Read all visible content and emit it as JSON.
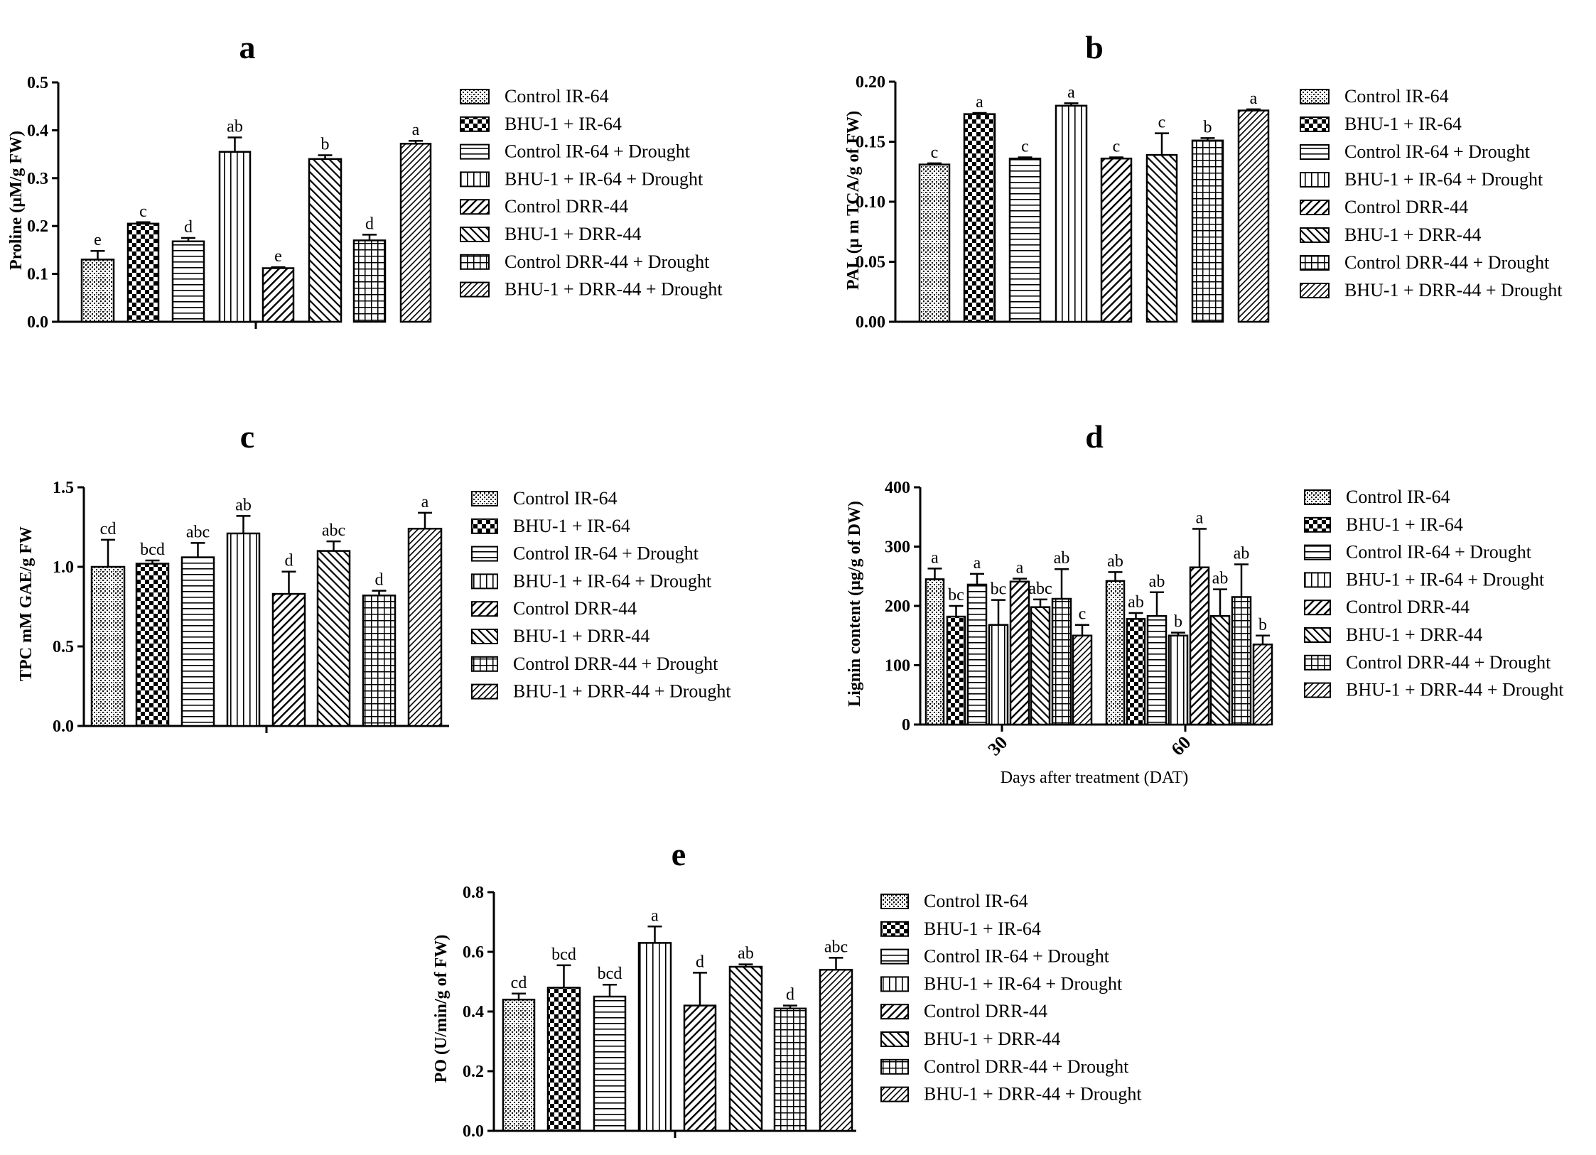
{
  "legend_entries": [
    "Control IR-64",
    "BHU-1 + IR-64",
    "Control IR-64 + Drought",
    "BHU-1 + IR-64 + Drought",
    "Control DRR-44",
    "BHU-1 + DRR-44",
    "Control DRR-44 + Drought",
    "BHU-1 + DRR-44 + Drought"
  ],
  "patterns": [
    "stipple",
    "checker",
    "hlines",
    "vlines",
    "diag-up",
    "diag-down",
    "grid",
    "diag-fine"
  ],
  "colors": {
    "ink": "#000000",
    "background": "#ffffff"
  },
  "chart_data": [
    {
      "panel": "a",
      "type": "bar",
      "title": "a",
      "ylabel": "Proline (µM/g FW)",
      "ylim": [
        0,
        0.5
      ],
      "yticks": [
        0.0,
        0.1,
        0.2,
        0.3,
        0.4,
        0.5
      ],
      "ytick_labels": [
        "0.0",
        "0.1",
        "0.2",
        "0.3",
        "0.4",
        "0.5"
      ],
      "series": [
        {
          "name": "Control IR-64",
          "values": [
            0.13
          ],
          "errors": [
            0.018
          ],
          "letters": [
            "e"
          ]
        },
        {
          "name": "BHU-1 + IR-64",
          "values": [
            0.205
          ],
          "errors": [
            0.003
          ],
          "letters": [
            "c"
          ]
        },
        {
          "name": "Control IR-64 + Drought",
          "values": [
            0.168
          ],
          "errors": [
            0.007
          ],
          "letters": [
            "d"
          ]
        },
        {
          "name": "BHU-1 + IR-64 + Drought",
          "values": [
            0.355
          ],
          "errors": [
            0.03
          ],
          "letters": [
            "ab"
          ]
        },
        {
          "name": "Control DRR-44",
          "values": [
            0.112
          ],
          "errors": [
            0.002
          ],
          "letters": [
            "e"
          ]
        },
        {
          "name": "BHU-1 + DRR-44",
          "values": [
            0.34
          ],
          "errors": [
            0.008
          ],
          "letters": [
            "b"
          ]
        },
        {
          "name": "Control DRR-44 + Drought",
          "values": [
            0.17
          ],
          "errors": [
            0.012
          ],
          "letters": [
            "d"
          ]
        },
        {
          "name": "BHU-1 + DRR-44 + Drought",
          "values": [
            0.372
          ],
          "errors": [
            0.006
          ],
          "letters": [
            "a"
          ]
        }
      ]
    },
    {
      "panel": "b",
      "type": "bar",
      "title": "b",
      "ylabel": "PAL (µ m TCA/g of FW)",
      "ylim": [
        0,
        0.2
      ],
      "yticks": [
        0.0,
        0.05,
        0.1,
        0.15,
        0.2
      ],
      "ytick_labels": [
        "0.00",
        "0.05",
        "0.10",
        "0.15",
        "0.20"
      ],
      "series": [
        {
          "name": "Control IR-64",
          "values": [
            0.131
          ],
          "errors": [
            0.001
          ],
          "letters": [
            "c"
          ]
        },
        {
          "name": "BHU-1 + IR-64",
          "values": [
            0.173
          ],
          "errors": [
            0.001
          ],
          "letters": [
            "a"
          ]
        },
        {
          "name": "Control IR-64 + Drought",
          "values": [
            0.136
          ],
          "errors": [
            0.001
          ],
          "letters": [
            "c"
          ]
        },
        {
          "name": "BHU-1 + IR-64 + Drought",
          "values": [
            0.18
          ],
          "errors": [
            0.002
          ],
          "letters": [
            "a"
          ]
        },
        {
          "name": "Control DRR-44",
          "values": [
            0.136
          ],
          "errors": [
            0.001
          ],
          "letters": [
            "c"
          ]
        },
        {
          "name": "BHU-1 + DRR-44",
          "values": [
            0.139
          ],
          "errors": [
            0.018
          ],
          "letters": [
            "c"
          ]
        },
        {
          "name": "Control DRR-44 + Drought",
          "values": [
            0.151
          ],
          "errors": [
            0.002
          ],
          "letters": [
            "b"
          ]
        },
        {
          "name": "BHU-1 + DRR-44 + Drought",
          "values": [
            0.176
          ],
          "errors": [
            0.001
          ],
          "letters": [
            "a"
          ]
        }
      ]
    },
    {
      "panel": "c",
      "type": "bar",
      "title": "c",
      "ylabel": "TPC mM GAE/g FW",
      "ylim": [
        0,
        1.5
      ],
      "yticks": [
        0.0,
        0.5,
        1.0,
        1.5
      ],
      "ytick_labels": [
        "0.0",
        "0.5",
        "1.0",
        "1.5"
      ],
      "series": [
        {
          "name": "Control IR-64",
          "values": [
            1.0
          ],
          "errors": [
            0.17
          ],
          "letters": [
            "cd"
          ]
        },
        {
          "name": "BHU-1 + IR-64",
          "values": [
            1.02
          ],
          "errors": [
            0.02
          ],
          "letters": [
            "bcd"
          ]
        },
        {
          "name": "Control IR-64 + Drought",
          "values": [
            1.06
          ],
          "errors": [
            0.09
          ],
          "letters": [
            "abc"
          ]
        },
        {
          "name": "BHU-1 + IR-64 + Drought",
          "values": [
            1.21
          ],
          "errors": [
            0.11
          ],
          "letters": [
            "ab"
          ]
        },
        {
          "name": "Control DRR-44",
          "values": [
            0.83
          ],
          "errors": [
            0.14
          ],
          "letters": [
            "d"
          ]
        },
        {
          "name": "BHU-1 + DRR-44",
          "values": [
            1.1
          ],
          "errors": [
            0.06
          ],
          "letters": [
            "abc"
          ]
        },
        {
          "name": "Control DRR-44 + Drought",
          "values": [
            0.82
          ],
          "errors": [
            0.03
          ],
          "letters": [
            "d"
          ]
        },
        {
          "name": "BHU-1 + DRR-44 + Drought",
          "values": [
            1.24
          ],
          "errors": [
            0.1
          ],
          "letters": [
            "a"
          ]
        }
      ]
    },
    {
      "panel": "d",
      "type": "bar",
      "title": "d",
      "ylabel": "Lignin content (µg/g of DW)",
      "xlabel": "Days after treatment (DAT)",
      "categories": [
        "30",
        "60"
      ],
      "ylim": [
        0,
        400
      ],
      "yticks": [
        0,
        100,
        200,
        300,
        400
      ],
      "ytick_labels": [
        "0",
        "100",
        "200",
        "300",
        "400"
      ],
      "series": [
        {
          "name": "Control IR-64",
          "values": [
            245,
            242
          ],
          "errors": [
            18,
            15
          ],
          "letters": [
            "a",
            "ab"
          ]
        },
        {
          "name": "BHU-1 + IR-64",
          "values": [
            182,
            178
          ],
          "errors": [
            18,
            10
          ],
          "letters": [
            "bc",
            "ab"
          ]
        },
        {
          "name": "Control IR-64 + Drought",
          "values": [
            236,
            183
          ],
          "errors": [
            18,
            40
          ],
          "letters": [
            "a",
            "ab"
          ]
        },
        {
          "name": "BHU-1 + IR-64 + Drought",
          "values": [
            168,
            150
          ],
          "errors": [
            42,
            5
          ],
          "letters": [
            "bc",
            "b"
          ]
        },
        {
          "name": "Control DRR-44",
          "values": [
            241,
            265
          ],
          "errors": [
            5,
            65
          ],
          "letters": [
            "a",
            "a"
          ]
        },
        {
          "name": "BHU-1 + DRR-44",
          "values": [
            198,
            183
          ],
          "errors": [
            13,
            45
          ],
          "letters": [
            "abc",
            "ab"
          ]
        },
        {
          "name": "Control DRR-44 + Drought",
          "values": [
            212,
            215
          ],
          "errors": [
            50,
            55
          ],
          "letters": [
            "ab",
            "ab"
          ]
        },
        {
          "name": "BHU-1 + DRR-44 + Drought",
          "values": [
            150,
            135
          ],
          "errors": [
            18,
            15
          ],
          "letters": [
            "c",
            "b"
          ]
        }
      ]
    },
    {
      "panel": "e",
      "type": "bar",
      "title": "e",
      "ylabel": "PO (U/min/g of FW)",
      "ylim": [
        0,
        0.8
      ],
      "yticks": [
        0.0,
        0.2,
        0.4,
        0.6,
        0.8
      ],
      "ytick_labels": [
        "0.0",
        "0.2",
        "0.4",
        "0.6",
        "0.8"
      ],
      "series": [
        {
          "name": "Control IR-64",
          "values": [
            0.44
          ],
          "errors": [
            0.02
          ],
          "letters": [
            "cd"
          ]
        },
        {
          "name": "BHU-1 + IR-64",
          "values": [
            0.48
          ],
          "errors": [
            0.075
          ],
          "letters": [
            "bcd"
          ]
        },
        {
          "name": "Control IR-64 + Drought",
          "values": [
            0.45
          ],
          "errors": [
            0.04
          ],
          "letters": [
            "bcd"
          ]
        },
        {
          "name": "BHU-1 + IR-64 + Drought",
          "values": [
            0.63
          ],
          "errors": [
            0.055
          ],
          "letters": [
            "a"
          ]
        },
        {
          "name": "Control DRR-44",
          "values": [
            0.42
          ],
          "errors": [
            0.11
          ],
          "letters": [
            "d"
          ]
        },
        {
          "name": "BHU-1 + DRR-44",
          "values": [
            0.55
          ],
          "errors": [
            0.008
          ],
          "letters": [
            "ab"
          ]
        },
        {
          "name": "Control DRR-44 + Drought",
          "values": [
            0.41
          ],
          "errors": [
            0.01
          ],
          "letters": [
            "d"
          ]
        },
        {
          "name": "BHU-1 + DRR-44 + Drought",
          "values": [
            0.54
          ],
          "errors": [
            0.04
          ],
          "letters": [
            "abc"
          ]
        }
      ]
    }
  ]
}
